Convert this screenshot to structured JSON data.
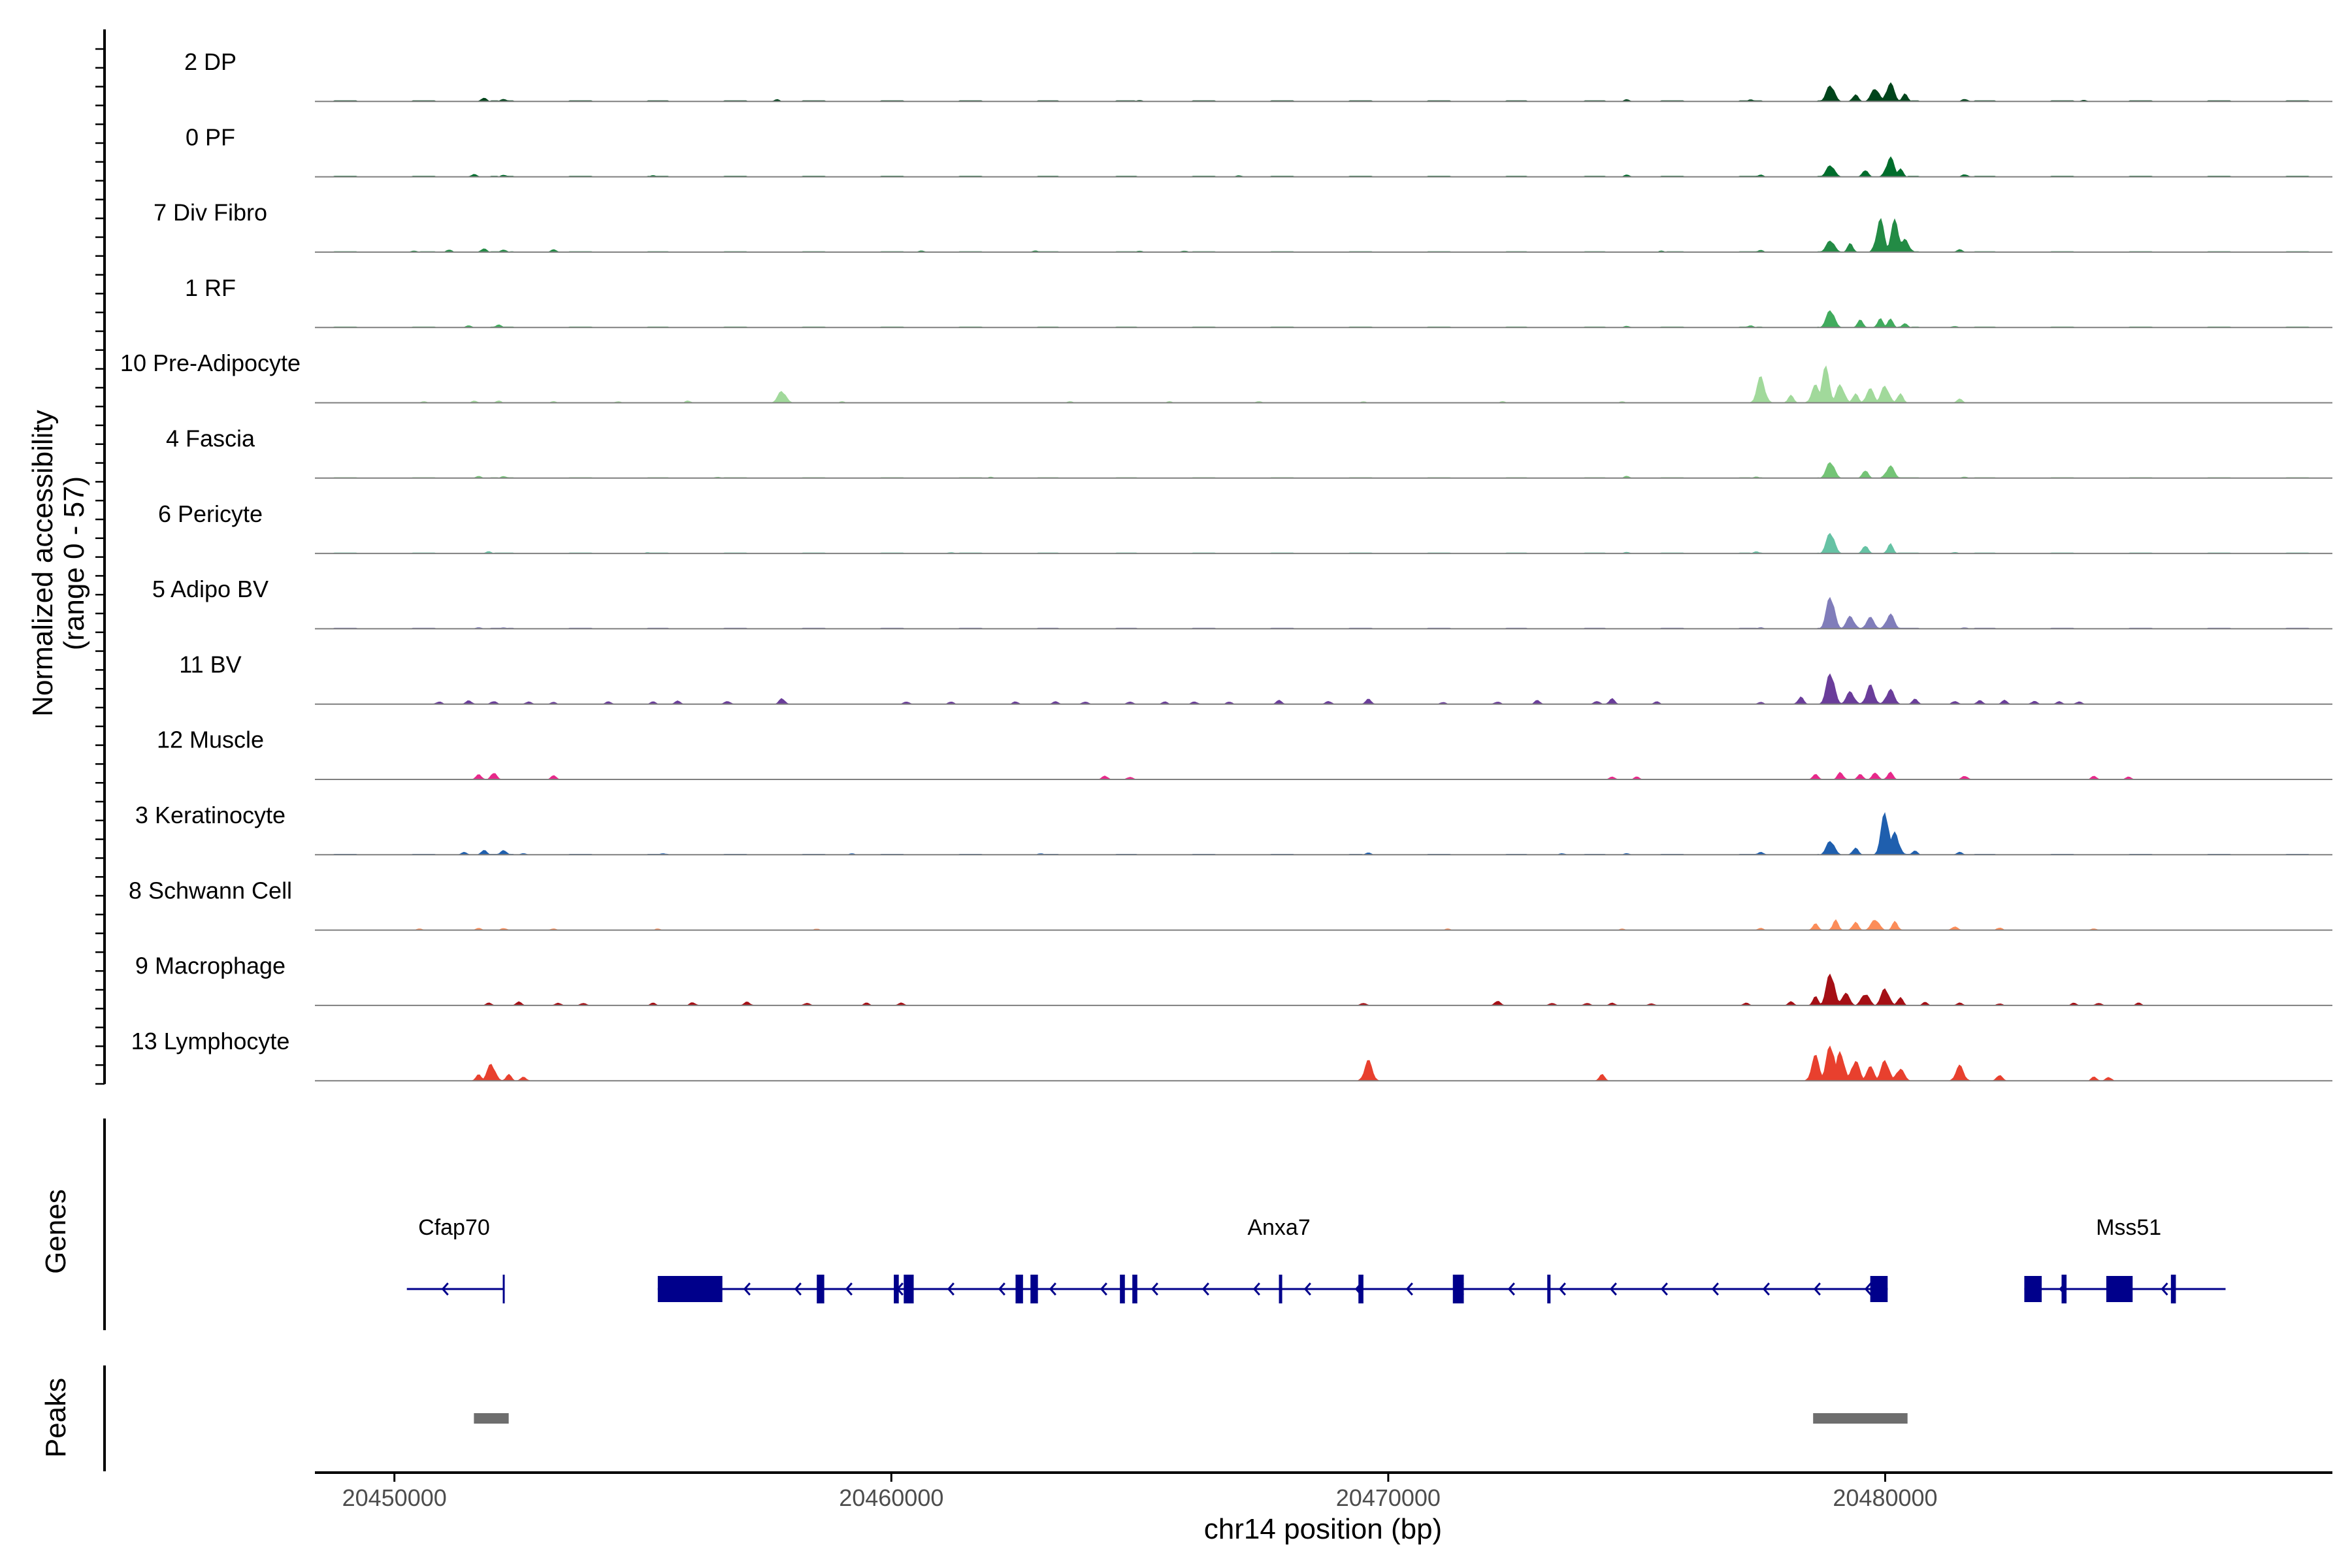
{
  "chart_data": {
    "type": "area",
    "ylabel": "Normalized accessibility\n(range 0 - 57)",
    "xlabel": "chr14 position (bp)",
    "xlim": [
      20448400,
      20489000
    ],
    "ylim": [
      0,
      57
    ],
    "x_ticks": [
      20450000,
      20460000,
      20470000,
      20480000
    ],
    "x_tick_labels": [
      "20450000",
      "20460000",
      "20470000",
      "20480000"
    ],
    "tracks": [
      {
        "name": "2 DP",
        "color": "#00441b",
        "peaks": [
          [
            20451800,
            3
          ],
          [
            20452200,
            2
          ],
          [
            20457700,
            1.5
          ],
          [
            20465000,
            1
          ],
          [
            20474800,
            1.5
          ],
          [
            20477300,
            1.5
          ],
          [
            20478900,
            14
          ],
          [
            20479400,
            6
          ],
          [
            20479800,
            11
          ],
          [
            20480100,
            15
          ],
          [
            20480400,
            6
          ],
          [
            20481600,
            2
          ],
          [
            20484000,
            1
          ]
        ],
        "baseline": 0.6
      },
      {
        "name": "0 PF",
        "color": "#006d2c",
        "peaks": [
          [
            20451600,
            2
          ],
          [
            20452200,
            1.5
          ],
          [
            20455200,
            1
          ],
          [
            20467000,
            1
          ],
          [
            20474800,
            1.5
          ],
          [
            20477500,
            1.5
          ],
          [
            20478900,
            10
          ],
          [
            20479600,
            6
          ],
          [
            20480100,
            16
          ],
          [
            20480300,
            7
          ],
          [
            20481600,
            2
          ]
        ],
        "baseline": 0.5
      },
      {
        "name": "7 Div Fibro",
        "color": "#238b45",
        "peaks": [
          [
            20450400,
            1
          ],
          [
            20451100,
            2
          ],
          [
            20451800,
            3
          ],
          [
            20452200,
            2
          ],
          [
            20453200,
            2
          ],
          [
            20460600,
            1
          ],
          [
            20462900,
            1
          ],
          [
            20465000,
            1
          ],
          [
            20465900,
            1
          ],
          [
            20475500,
            1
          ],
          [
            20477500,
            1.5
          ],
          [
            20478900,
            10
          ],
          [
            20479300,
            7
          ],
          [
            20479900,
            26
          ],
          [
            20480200,
            26
          ],
          [
            20480400,
            10
          ],
          [
            20481500,
            2
          ]
        ],
        "baseline": 0.4
      },
      {
        "name": "1 RF",
        "color": "#41ab5d",
        "peaks": [
          [
            20451500,
            1.5
          ],
          [
            20452100,
            2
          ],
          [
            20474800,
            1
          ],
          [
            20477300,
            1.5
          ],
          [
            20478900,
            15
          ],
          [
            20479500,
            6
          ],
          [
            20479900,
            7
          ],
          [
            20480100,
            7
          ],
          [
            20480400,
            3
          ],
          [
            20481400,
            1
          ]
        ],
        "baseline": 0.4
      },
      {
        "name": "10 Pre-Adipocyte",
        "color": "#a1d99b",
        "peaks": [
          [
            20450600,
            1
          ],
          [
            20451600,
            1.5
          ],
          [
            20452100,
            1.5
          ],
          [
            20453200,
            1
          ],
          [
            20454500,
            1
          ],
          [
            20455900,
            1.5
          ],
          [
            20457800,
            10
          ],
          [
            20459000,
            1
          ],
          [
            20463600,
            1
          ],
          [
            20465600,
            1
          ],
          [
            20467400,
            1
          ],
          [
            20469500,
            1
          ],
          [
            20472300,
            1
          ],
          [
            20474700,
            1
          ],
          [
            20477500,
            21
          ],
          [
            20478100,
            6
          ],
          [
            20478600,
            14
          ],
          [
            20478800,
            28
          ],
          [
            20479100,
            15
          ],
          [
            20479400,
            8
          ],
          [
            20479700,
            11
          ],
          [
            20480000,
            14
          ],
          [
            20480300,
            8
          ],
          [
            20481500,
            3
          ]
        ],
        "baseline": 0.3
      },
      {
        "name": "4 Fascia",
        "color": "#74c476",
        "peaks": [
          [
            20451700,
            1.5
          ],
          [
            20452200,
            1.5
          ],
          [
            20456500,
            0.8
          ],
          [
            20462000,
            0.8
          ],
          [
            20474800,
            1.5
          ],
          [
            20477400,
            1
          ],
          [
            20478900,
            14
          ],
          [
            20479600,
            7
          ],
          [
            20480100,
            10
          ],
          [
            20481600,
            1
          ]
        ],
        "baseline": 0.4
      },
      {
        "name": "6 Pericyte",
        "color": "#66c2a4",
        "peaks": [
          [
            20451900,
            1.5
          ],
          [
            20455100,
            0.8
          ],
          [
            20461200,
            0.8
          ],
          [
            20474800,
            1
          ],
          [
            20477400,
            1.5
          ],
          [
            20478900,
            18
          ],
          [
            20479600,
            7
          ],
          [
            20480100,
            8
          ],
          [
            20481400,
            1
          ]
        ],
        "baseline": 0.4
      },
      {
        "name": "5 Adipo BV",
        "color": "#807dba",
        "peaks": [
          [
            20451700,
            1
          ],
          [
            20452200,
            1
          ],
          [
            20477500,
            1
          ],
          [
            20478900,
            28
          ],
          [
            20479300,
            10
          ],
          [
            20479700,
            9
          ],
          [
            20480100,
            12
          ],
          [
            20481600,
            1
          ]
        ],
        "baseline": 0.5
      },
      {
        "name": "11 BV",
        "color": "#6a3d9a",
        "peaks": [
          [
            20450900,
            2
          ],
          [
            20451500,
            3
          ],
          [
            20452000,
            2.5
          ],
          [
            20452700,
            2
          ],
          [
            20453200,
            1.5
          ],
          [
            20454300,
            2
          ],
          [
            20455200,
            2
          ],
          [
            20455700,
            2.5
          ],
          [
            20456700,
            2.5
          ],
          [
            20457800,
            5
          ],
          [
            20460300,
            2
          ],
          [
            20461200,
            2
          ],
          [
            20462500,
            2
          ],
          [
            20463300,
            2
          ],
          [
            20463900,
            2
          ],
          [
            20464800,
            2
          ],
          [
            20465500,
            2
          ],
          [
            20466100,
            2
          ],
          [
            20466800,
            2
          ],
          [
            20467800,
            3
          ],
          [
            20468800,
            2.5
          ],
          [
            20469600,
            4
          ],
          [
            20471100,
            1.5
          ],
          [
            20472200,
            2
          ],
          [
            20473000,
            3
          ],
          [
            20474200,
            2.5
          ],
          [
            20474500,
            4.5
          ],
          [
            20475400,
            2
          ],
          [
            20477500,
            1.5
          ],
          [
            20478300,
            6
          ],
          [
            20478900,
            27
          ],
          [
            20479300,
            10
          ],
          [
            20479700,
            15
          ],
          [
            20480100,
            12
          ],
          [
            20480600,
            4
          ],
          [
            20481400,
            2.5
          ],
          [
            20481900,
            3
          ],
          [
            20482400,
            3
          ],
          [
            20483000,
            2.5
          ],
          [
            20483500,
            2
          ],
          [
            20483900,
            2
          ]
        ],
        "baseline": 0.3
      },
      {
        "name": "12 Muscle",
        "color": "#e7298a",
        "peaks": [
          [
            20451700,
            4
          ],
          [
            20452000,
            6
          ],
          [
            20453200,
            3
          ],
          [
            20464300,
            3
          ],
          [
            20464800,
            2
          ],
          [
            20474500,
            2
          ],
          [
            20475000,
            2
          ],
          [
            20478600,
            4
          ],
          [
            20479100,
            6
          ],
          [
            20479500,
            4
          ],
          [
            20479800,
            6
          ],
          [
            20480100,
            6
          ],
          [
            20481600,
            3
          ],
          [
            20484200,
            2.5
          ],
          [
            20484900,
            2
          ]
        ],
        "baseline": 0
      },
      {
        "name": "3 Keratinocyte",
        "color": "#1f5fae",
        "peaks": [
          [
            20451400,
            2
          ],
          [
            20451800,
            4
          ],
          [
            20452200,
            4
          ],
          [
            20452600,
            1
          ],
          [
            20455400,
            1
          ],
          [
            20459200,
            1
          ],
          [
            20463000,
            1
          ],
          [
            20469600,
            1.5
          ],
          [
            20473500,
            1
          ],
          [
            20474800,
            1
          ],
          [
            20477500,
            2
          ],
          [
            20478900,
            12
          ],
          [
            20479400,
            6
          ],
          [
            20480000,
            35
          ],
          [
            20480200,
            18
          ],
          [
            20480600,
            3
          ],
          [
            20481500,
            2
          ]
        ],
        "baseline": 0.4
      },
      {
        "name": "8 Schwann Cell",
        "color": "#fc8d59",
        "peaks": [
          [
            20450500,
            1
          ],
          [
            20451700,
            1.5
          ],
          [
            20452200,
            1.5
          ],
          [
            20453200,
            1
          ],
          [
            20455300,
            1
          ],
          [
            20458500,
            1
          ],
          [
            20471200,
            1
          ],
          [
            20474700,
            1
          ],
          [
            20477500,
            1.5
          ],
          [
            20478600,
            5
          ],
          [
            20479000,
            8
          ],
          [
            20479400,
            7
          ],
          [
            20479800,
            9
          ],
          [
            20480200,
            7
          ],
          [
            20481400,
            3
          ],
          [
            20482300,
            2
          ],
          [
            20484200,
            1
          ]
        ],
        "baseline": 0.3
      },
      {
        "name": "9 Macrophage",
        "color": "#a50f15",
        "peaks": [
          [
            20451900,
            2
          ],
          [
            20452500,
            3
          ],
          [
            20453300,
            2
          ],
          [
            20453800,
            2
          ],
          [
            20455200,
            2
          ],
          [
            20456000,
            2.5
          ],
          [
            20457100,
            3
          ],
          [
            20458300,
            2
          ],
          [
            20459500,
            2
          ],
          [
            20460200,
            2
          ],
          [
            20469500,
            2
          ],
          [
            20472200,
            4
          ],
          [
            20473300,
            2
          ],
          [
            20474000,
            2
          ],
          [
            20474500,
            2
          ],
          [
            20475300,
            1.5
          ],
          [
            20477200,
            2
          ],
          [
            20478100,
            3
          ],
          [
            20478600,
            7
          ],
          [
            20478900,
            28
          ],
          [
            20479200,
            10
          ],
          [
            20479600,
            10
          ],
          [
            20480000,
            14
          ],
          [
            20480300,
            7
          ],
          [
            20480800,
            2.5
          ],
          [
            20481500,
            2
          ],
          [
            20482300,
            1.5
          ],
          [
            20483800,
            2
          ],
          [
            20484300,
            2
          ],
          [
            20485100,
            2
          ]
        ],
        "baseline": 0.2
      },
      {
        "name": "13 Lymphocyte",
        "color": "#e8402e",
        "peaks": [
          [
            20451700,
            5
          ],
          [
            20451950,
            14
          ],
          [
            20452300,
            5
          ],
          [
            20452600,
            3
          ],
          [
            20469600,
            16
          ],
          [
            20474300,
            5
          ],
          [
            20478600,
            20
          ],
          [
            20478900,
            31
          ],
          [
            20479100,
            24
          ],
          [
            20479400,
            17
          ],
          [
            20479700,
            11
          ],
          [
            20480000,
            17
          ],
          [
            20480300,
            10
          ],
          [
            20481500,
            12
          ],
          [
            20482300,
            5
          ],
          [
            20484200,
            3
          ],
          [
            20484500,
            3
          ]
        ],
        "baseline": 0
      }
    ],
    "genes_label": "Genes",
    "genes": [
      {
        "name": "Cfap70",
        "start": 20450250,
        "end": 20452200,
        "strand": "-",
        "label_at": 20451200,
        "exons": [],
        "tss_tick": 20452200
      },
      {
        "name": "Anxa7",
        "start": 20455300,
        "end": 20480050,
        "strand": "-",
        "label_at": 20467800,
        "exons": [
          [
            20455300,
            20456600
          ],
          [
            20458500,
            20458650
          ],
          [
            20460050,
            20460150
          ],
          [
            20460250,
            20460450
          ],
          [
            20462500,
            20462650
          ],
          [
            20462800,
            20462950
          ],
          [
            20464600,
            20464700
          ],
          [
            20464850,
            20464950
          ],
          [
            20467800,
            20467860
          ],
          [
            20469400,
            20469500
          ],
          [
            20471300,
            20471520
          ],
          [
            20473200,
            20473260
          ],
          [
            20479700,
            20480050
          ]
        ]
      },
      {
        "name": "Mss51",
        "start": 20482800,
        "end": 20486850,
        "strand": "-",
        "label_at": 20484900,
        "exons": [
          [
            20482800,
            20483150
          ],
          [
            20483550,
            20483650
          ],
          [
            20484450,
            20484980
          ],
          [
            20485750,
            20485850
          ]
        ]
      }
    ],
    "peaks_label": "Peaks",
    "peak_regions": [
      [
        20451600,
        20452300
      ],
      [
        20478550,
        20480450
      ]
    ]
  }
}
